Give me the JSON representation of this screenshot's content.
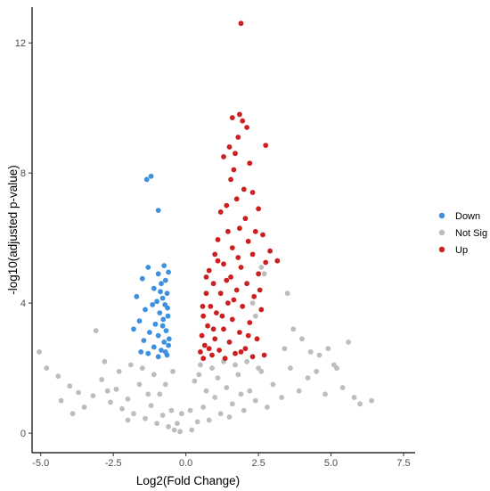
{
  "chart_data": {
    "type": "scatter",
    "title": "",
    "xlabel": "Log2(Fold Change)",
    "ylabel": "-log10(adjusted p-value)",
    "xlim": [
      -5.3,
      7.9
    ],
    "ylim": [
      -0.6,
      13.1
    ],
    "x_ticks": [
      -5.0,
      -2.5,
      0.0,
      2.5,
      5.0,
      7.5
    ],
    "x_tick_labels": [
      "-5.0",
      "-2.5",
      "0.0",
      "2.5",
      "5.0",
      "7.5"
    ],
    "y_ticks": [
      0,
      4,
      8,
      12
    ],
    "y_tick_labels": [
      "0",
      "4",
      "8",
      "12"
    ],
    "grid": false,
    "legend_position": "right",
    "series": [
      {
        "name": "Down",
        "color": "#3d8fe0",
        "points": [
          [
            -1.2,
            7.9
          ],
          [
            -1.35,
            7.8
          ],
          [
            -0.95,
            6.85
          ],
          [
            -0.75,
            5.15
          ],
          [
            -1.3,
            5.1
          ],
          [
            -0.95,
            4.9
          ],
          [
            -1.5,
            4.75
          ],
          [
            -0.6,
            4.95
          ],
          [
            -0.85,
            4.6
          ],
          [
            -1.1,
            4.45
          ],
          [
            -0.7,
            4.7
          ],
          [
            -1.7,
            4.2
          ],
          [
            -0.65,
            4.3
          ],
          [
            -1.0,
            4.05
          ],
          [
            -0.8,
            4.15
          ],
          [
            -1.4,
            3.8
          ],
          [
            -0.72,
            3.95
          ],
          [
            -0.9,
            3.7
          ],
          [
            -1.6,
            3.45
          ],
          [
            -1.05,
            3.35
          ],
          [
            -0.62,
            3.6
          ],
          [
            -0.8,
            3.3
          ],
          [
            -1.25,
            3.1
          ],
          [
            -0.95,
            3.0
          ],
          [
            -0.68,
            3.15
          ],
          [
            -1.45,
            2.85
          ],
          [
            -0.75,
            2.8
          ],
          [
            -1.1,
            2.65
          ],
          [
            -0.6,
            2.7
          ],
          [
            -0.85,
            2.55
          ],
          [
            -1.3,
            2.45
          ],
          [
            -0.65,
            2.4
          ],
          [
            -0.95,
            2.35
          ],
          [
            -0.7,
            2.5
          ],
          [
            -1.55,
            2.5
          ],
          [
            -0.58,
            2.9
          ],
          [
            -0.78,
            3.5
          ],
          [
            -0.88,
            4.35
          ],
          [
            -1.15,
            3.95
          ],
          [
            -0.63,
            3.85
          ],
          [
            -1.8,
            3.2
          ]
        ]
      },
      {
        "name": "Not Sig",
        "color": "#bdbdbd",
        "points": [
          [
            -5.05,
            2.5
          ],
          [
            -4.8,
            2.0
          ],
          [
            -4.4,
            1.75
          ],
          [
            -4.0,
            1.45
          ],
          [
            -3.7,
            1.25
          ],
          [
            -3.2,
            1.15
          ],
          [
            -3.1,
            3.15
          ],
          [
            -2.9,
            1.65
          ],
          [
            -2.6,
            0.95
          ],
          [
            -2.4,
            1.35
          ],
          [
            -2.2,
            0.75
          ],
          [
            -2.0,
            1.05
          ],
          [
            -1.8,
            0.6
          ],
          [
            -1.6,
            1.5
          ],
          [
            -1.4,
            0.45
          ],
          [
            -1.2,
            0.85
          ],
          [
            -1.0,
            0.3
          ],
          [
            -0.8,
            0.55
          ],
          [
            -0.6,
            0.2
          ],
          [
            -0.4,
            0.1
          ],
          [
            -2.8,
            2.2
          ],
          [
            -3.5,
            0.8
          ],
          [
            -4.3,
            1.0
          ],
          [
            -1.9,
            2.1
          ],
          [
            -1.5,
            2.0
          ],
          [
            -1.1,
            1.8
          ],
          [
            -0.9,
            1.2
          ],
          [
            -0.7,
            1.5
          ],
          [
            -0.5,
            0.7
          ],
          [
            -0.3,
            0.3
          ],
          [
            -2.3,
            1.9
          ],
          [
            -2.7,
            1.3
          ],
          [
            -3.9,
            0.6
          ],
          [
            -1.3,
            1.2
          ],
          [
            -0.2,
            0.05
          ],
          [
            0.2,
            0.1
          ],
          [
            0.4,
            0.35
          ],
          [
            0.6,
            0.8
          ],
          [
            0.8,
            0.4
          ],
          [
            1.0,
            1.1
          ],
          [
            1.2,
            0.6
          ],
          [
            1.4,
            1.4
          ],
          [
            1.6,
            0.9
          ],
          [
            1.8,
            1.8
          ],
          [
            2.0,
            0.7
          ],
          [
            2.2,
            1.3
          ],
          [
            2.4,
            1.0
          ],
          [
            2.6,
            1.9
          ],
          [
            2.8,
            0.8
          ],
          [
            3.0,
            1.5
          ],
          [
            3.3,
            1.1
          ],
          [
            3.6,
            2.0
          ],
          [
            3.9,
            1.3
          ],
          [
            4.2,
            1.7
          ],
          [
            4.5,
            1.9
          ],
          [
            4.8,
            1.2
          ],
          [
            5.1,
            2.1
          ],
          [
            5.4,
            1.4
          ],
          [
            5.8,
            1.1
          ],
          [
            6.4,
            1.0
          ],
          [
            6.0,
            0.9
          ],
          [
            4.6,
            2.4
          ],
          [
            4.9,
            2.6
          ],
          [
            5.6,
            2.8
          ],
          [
            5.2,
            2.0
          ],
          [
            0.5,
            2.1
          ],
          [
            0.9,
            2.0
          ],
          [
            1.3,
            2.2
          ],
          [
            1.7,
            2.1
          ],
          [
            2.1,
            2.2
          ],
          [
            2.5,
            2.0
          ],
          [
            2.3,
            4.0
          ],
          [
            2.4,
            3.6
          ],
          [
            2.6,
            5.1
          ],
          [
            2.7,
            4.9
          ],
          [
            3.5,
            4.3
          ],
          [
            3.7,
            3.2
          ],
          [
            3.4,
            2.6
          ],
          [
            4.0,
            2.9
          ],
          [
            4.3,
            2.5
          ],
          [
            0.3,
            1.6
          ],
          [
            0.7,
            1.3
          ],
          [
            1.1,
            1.7
          ],
          [
            1.5,
            0.5
          ],
          [
            1.9,
            1.2
          ],
          [
            -0.15,
            0.6
          ],
          [
            0.15,
            0.7
          ],
          [
            -0.45,
            1.9
          ],
          [
            0.45,
            1.8
          ],
          [
            -2.0,
            0.4
          ]
        ]
      },
      {
        "name": "Up",
        "color": "#cc1f1f",
        "points": [
          [
            1.9,
            12.6
          ],
          [
            1.85,
            9.8
          ],
          [
            1.95,
            9.6
          ],
          [
            1.6,
            9.7
          ],
          [
            2.1,
            9.4
          ],
          [
            1.8,
            9.1
          ],
          [
            2.75,
            8.85
          ],
          [
            1.5,
            8.8
          ],
          [
            1.7,
            8.6
          ],
          [
            1.3,
            8.5
          ],
          [
            2.2,
            8.3
          ],
          [
            1.65,
            8.1
          ],
          [
            1.55,
            7.8
          ],
          [
            2.0,
            7.5
          ],
          [
            2.3,
            7.4
          ],
          [
            1.75,
            7.2
          ],
          [
            1.4,
            7.0
          ],
          [
            2.5,
            6.9
          ],
          [
            1.2,
            6.8
          ],
          [
            2.05,
            6.6
          ],
          [
            1.85,
            6.3
          ],
          [
            2.4,
            6.2
          ],
          [
            2.65,
            6.1
          ],
          [
            1.45,
            6.2
          ],
          [
            1.1,
            5.95
          ],
          [
            2.15,
            5.9
          ],
          [
            1.6,
            5.7
          ],
          [
            2.9,
            5.6
          ],
          [
            1.0,
            5.5
          ],
          [
            2.3,
            5.5
          ],
          [
            3.15,
            5.3
          ],
          [
            2.75,
            5.25
          ],
          [
            1.3,
            5.2
          ],
          [
            1.9,
            5.1
          ],
          [
            0.8,
            5.0
          ],
          [
            2.5,
            4.9
          ],
          [
            1.55,
            4.8
          ],
          [
            0.95,
            4.6
          ],
          [
            2.1,
            4.6
          ],
          [
            1.75,
            4.4
          ],
          [
            0.7,
            4.3
          ],
          [
            1.2,
            4.3
          ],
          [
            2.35,
            4.2
          ],
          [
            1.45,
            4.0
          ],
          [
            0.85,
            3.9
          ],
          [
            1.95,
            3.9
          ],
          [
            2.6,
            3.8
          ],
          [
            1.05,
            3.7
          ],
          [
            0.6,
            3.6
          ],
          [
            1.6,
            3.5
          ],
          [
            2.2,
            3.4
          ],
          [
            0.75,
            3.3
          ],
          [
            1.3,
            3.2
          ],
          [
            1.85,
            3.1
          ],
          [
            0.55,
            3.0
          ],
          [
            1.0,
            2.9
          ],
          [
            2.45,
            2.9
          ],
          [
            1.5,
            2.8
          ],
          [
            0.65,
            2.7
          ],
          [
            2.05,
            2.6
          ],
          [
            1.15,
            2.55
          ],
          [
            0.5,
            2.5
          ],
          [
            1.7,
            2.45
          ],
          [
            0.9,
            2.4
          ],
          [
            2.3,
            2.35
          ],
          [
            1.35,
            2.3
          ],
          [
            0.6,
            2.3
          ],
          [
            2.7,
            2.4
          ],
          [
            1.9,
            2.5
          ],
          [
            0.8,
            2.6
          ],
          [
            1.25,
            3.6
          ],
          [
            1.65,
            4.1
          ],
          [
            0.95,
            3.2
          ],
          [
            2.15,
            3.0
          ],
          [
            1.4,
            4.7
          ],
          [
            0.7,
            4.8
          ],
          [
            1.1,
            5.3
          ],
          [
            1.8,
            5.4
          ],
          [
            2.55,
            4.4
          ],
          [
            0.58,
            3.9
          ]
        ]
      }
    ],
    "legend": [
      {
        "label": "Down",
        "color": "#3d8fe0"
      },
      {
        "label": "Not Sig",
        "color": "#bdbdbd"
      },
      {
        "label": "Up",
        "color": "#cc1f1f"
      }
    ]
  }
}
